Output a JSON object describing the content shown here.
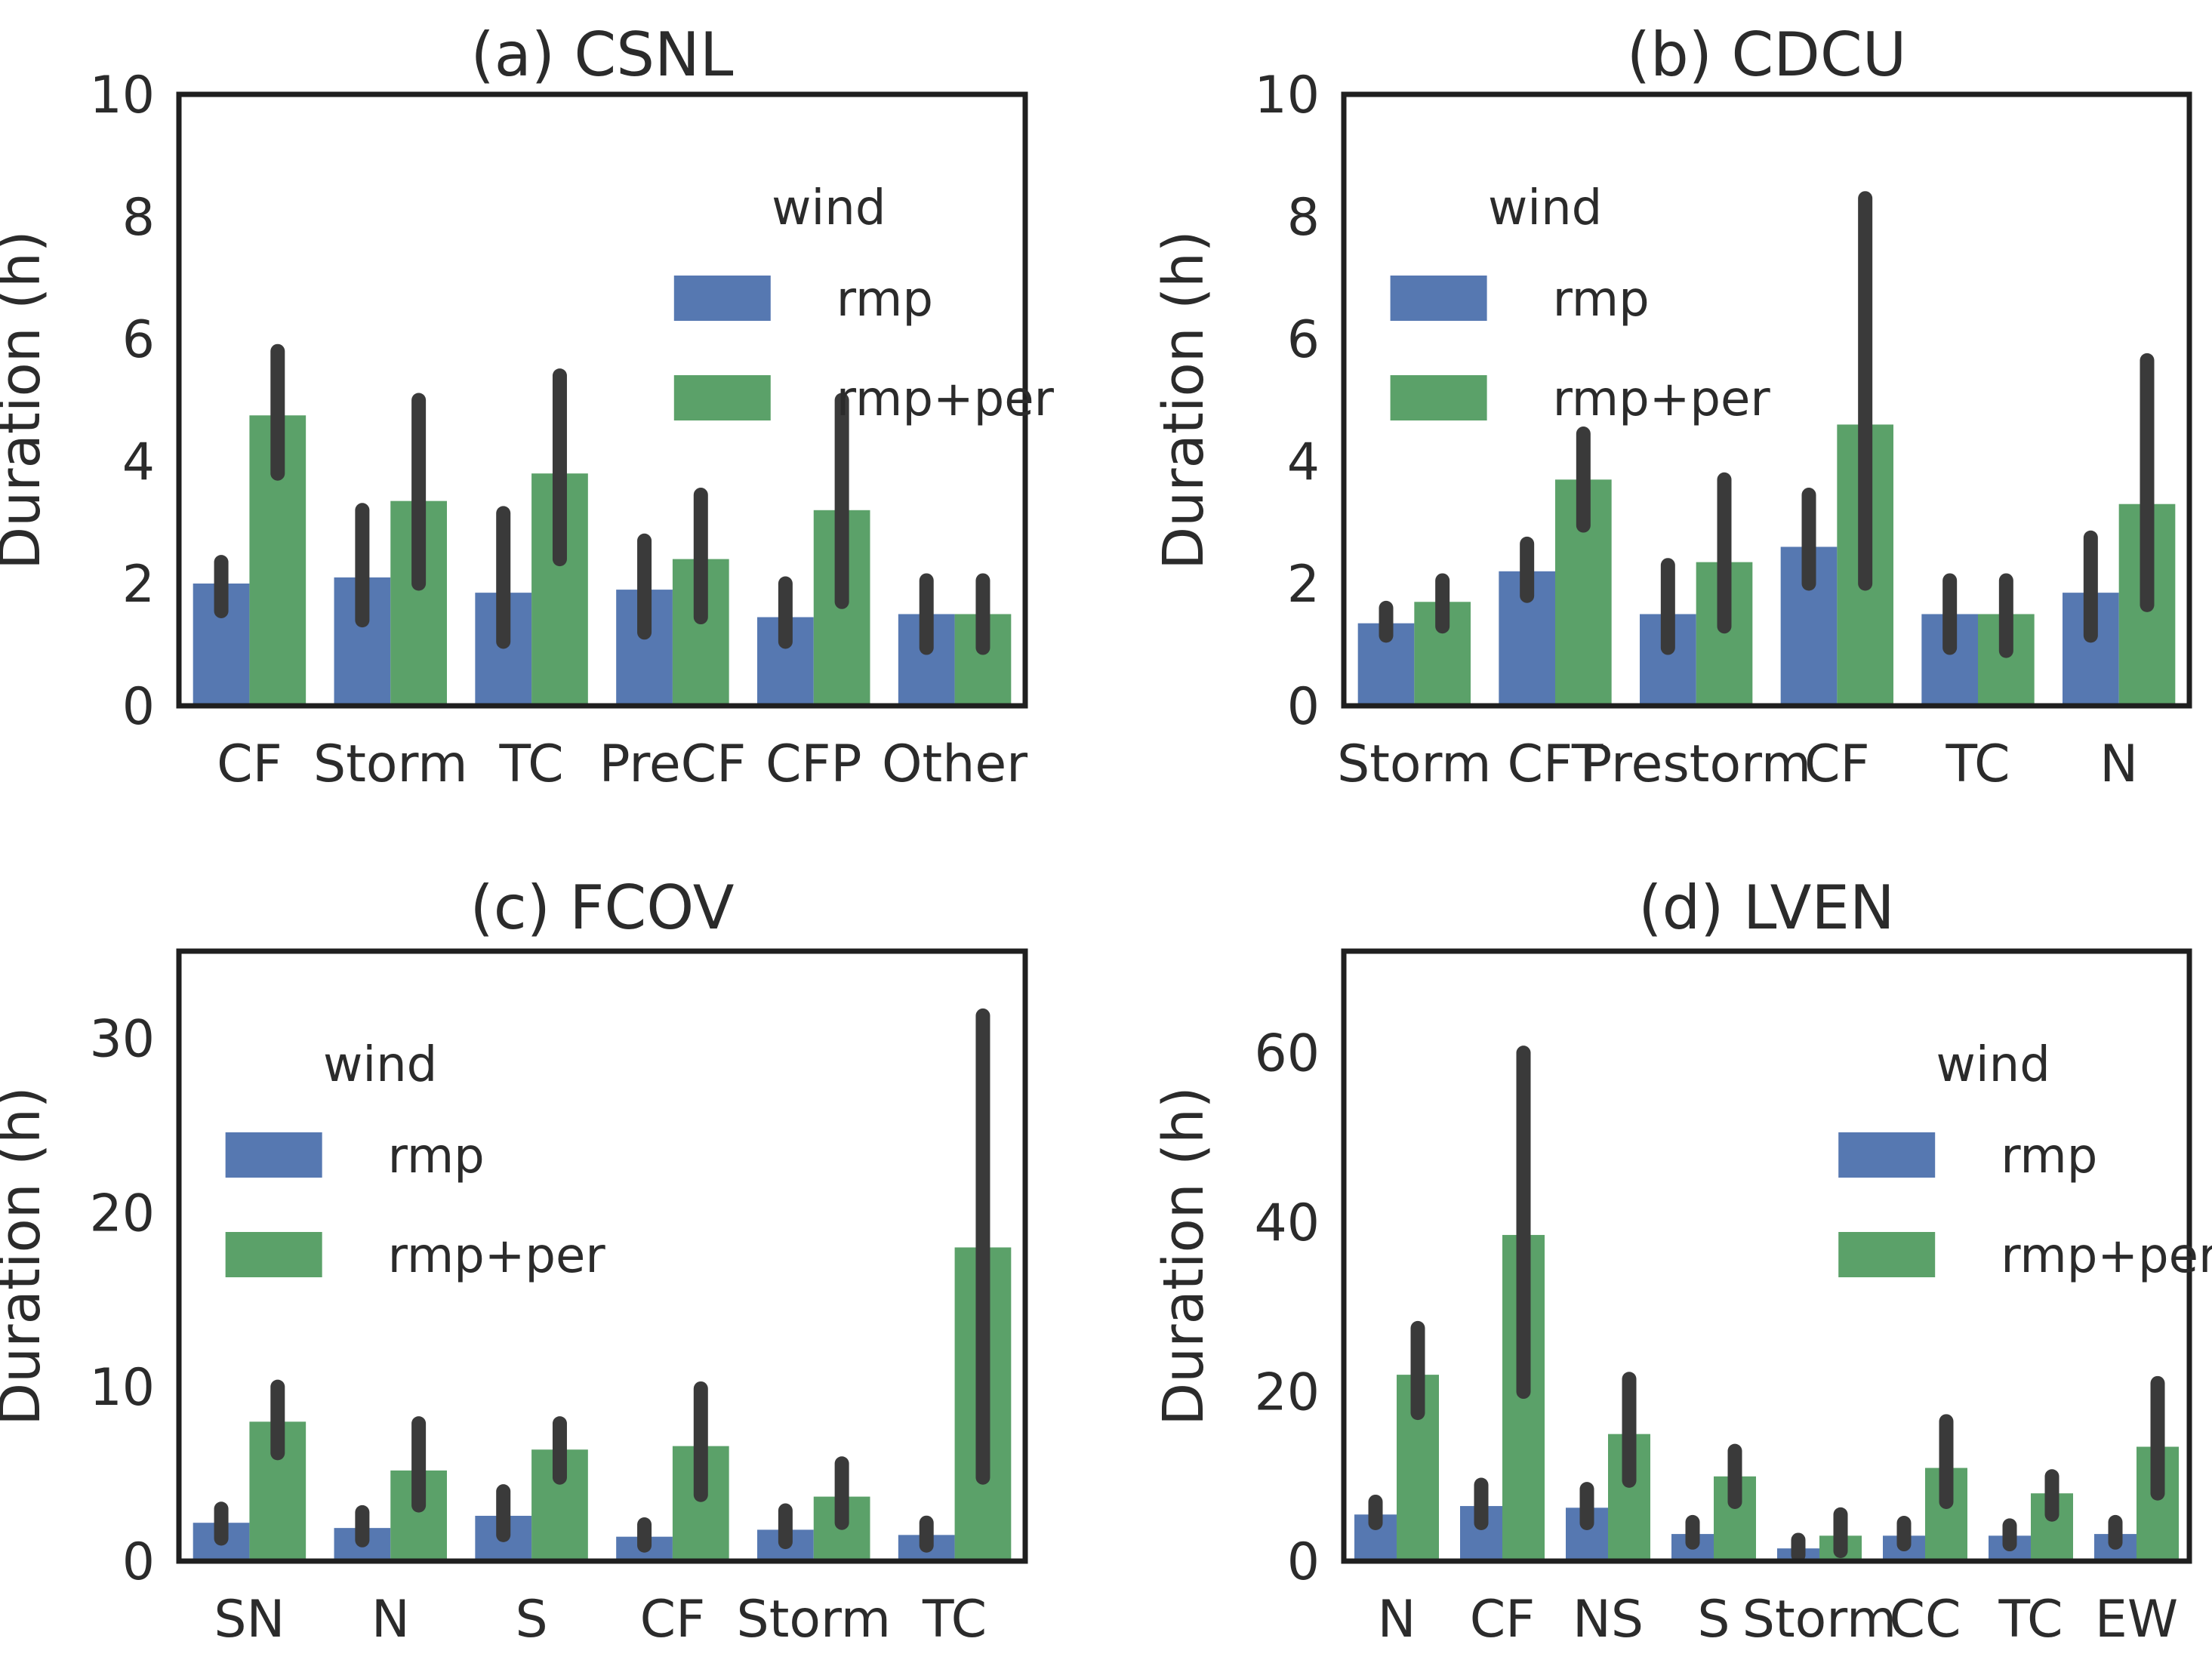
{
  "figure": {
    "background": "#ffffff",
    "text_color": "#2b2b2b",
    "spine_color": "#1f1f1f",
    "errorbar_color": "#3a3a3a",
    "bar_colors": {
      "rmp": "#5678b1",
      "rmp_per": "#5ba169"
    }
  },
  "legend": {
    "title": "wind",
    "entries": [
      {
        "label": "rmp",
        "color_key": "rmp"
      },
      {
        "label": "rmp+per",
        "color_key": "rmp_per"
      }
    ]
  },
  "chart_data": [
    {
      "type": "bar",
      "panel": "a",
      "title": "(a) CSNL",
      "ylabel": "Duration (h)",
      "ylim": [
        0,
        10
      ],
      "yticks": [
        0,
        2,
        4,
        6,
        8,
        10
      ],
      "grid": false,
      "legend_pos": "upper-right",
      "categories": [
        "CF",
        "Storm",
        "TC",
        "PreCF",
        "CFP",
        "Other"
      ],
      "series": [
        {
          "name": "rmp",
          "values": [
            2.0,
            2.1,
            1.85,
            1.9,
            1.45,
            1.5
          ],
          "err_lo": [
            1.55,
            1.4,
            1.05,
            1.2,
            1.05,
            0.95
          ],
          "err_hi": [
            2.35,
            3.2,
            3.15,
            2.7,
            2.0,
            2.05
          ]
        },
        {
          "name": "rmp+per",
          "values": [
            4.75,
            3.35,
            3.8,
            2.4,
            3.2,
            1.5
          ],
          "err_lo": [
            3.8,
            2.0,
            2.4,
            1.45,
            1.7,
            0.95
          ],
          "err_hi": [
            5.8,
            5.0,
            5.4,
            3.45,
            5.0,
            2.05
          ]
        }
      ]
    },
    {
      "type": "bar",
      "panel": "b",
      "title": "(b) CDCU",
      "ylabel": "Duration (h)",
      "ylim": [
        0,
        10
      ],
      "yticks": [
        0,
        2,
        4,
        6,
        8,
        10
      ],
      "grid": false,
      "legend_pos": "upper-left",
      "categories": [
        "Storm",
        "CFT",
        "Prestorm",
        "CF",
        "TC",
        "N"
      ],
      "series": [
        {
          "name": "rmp",
          "values": [
            1.35,
            2.2,
            1.5,
            2.6,
            1.5,
            1.85
          ],
          "err_lo": [
            1.15,
            1.8,
            0.95,
            2.0,
            0.95,
            1.15
          ],
          "err_hi": [
            1.6,
            2.65,
            2.3,
            3.45,
            2.05,
            2.75
          ]
        },
        {
          "name": "rmp+per",
          "values": [
            1.7,
            3.7,
            2.35,
            4.6,
            1.5,
            3.3
          ],
          "err_lo": [
            1.3,
            2.95,
            1.3,
            2.0,
            0.9,
            1.65
          ],
          "err_hi": [
            2.05,
            4.45,
            3.7,
            8.3,
            2.05,
            5.65
          ]
        }
      ]
    },
    {
      "type": "bar",
      "panel": "c",
      "title": "(c) FCOV",
      "ylabel": "Duration (h)",
      "ylim": [
        0,
        35
      ],
      "yticks": [
        0,
        10,
        20,
        30
      ],
      "grid": false,
      "legend_pos": "upper-left",
      "categories": [
        "SN",
        "N",
        "S",
        "CF",
        "Storm",
        "TC"
      ],
      "series": [
        {
          "name": "rmp",
          "values": [
            2.2,
            1.9,
            2.6,
            1.4,
            1.8,
            1.5
          ],
          "err_lo": [
            1.3,
            1.2,
            1.5,
            0.9,
            1.1,
            0.9
          ],
          "err_hi": [
            3.0,
            2.8,
            4.0,
            2.1,
            2.9,
            2.2
          ]
        },
        {
          "name": "rmp+per",
          "values": [
            8.0,
            5.2,
            6.4,
            6.6,
            3.7,
            18.0
          ],
          "err_lo": [
            6.2,
            3.2,
            4.8,
            3.8,
            2.2,
            4.8
          ],
          "err_hi": [
            10.0,
            7.9,
            7.9,
            9.9,
            5.6,
            31.3
          ]
        }
      ]
    },
    {
      "type": "bar",
      "panel": "d",
      "title": "(d) LVEN",
      "ylabel": "Duration (h)",
      "ylim": [
        0,
        72
      ],
      "yticks": [
        0,
        20,
        40,
        60
      ],
      "grid": false,
      "legend_pos": "upper-right",
      "categories": [
        "N",
        "CF",
        "NS",
        "S",
        "Storm",
        "CC",
        "TC",
        "EW"
      ],
      "series": [
        {
          "name": "rmp",
          "values": [
            5.5,
            6.5,
            6.3,
            3.2,
            1.5,
            3.0,
            3.0,
            3.2
          ],
          "err_lo": [
            4.5,
            4.5,
            4.5,
            2.2,
            0.7,
            2.0,
            2.0,
            2.2
          ],
          "err_hi": [
            7.0,
            9.0,
            8.5,
            4.6,
            2.5,
            4.5,
            4.2,
            4.6
          ]
        },
        {
          "name": "rmp+per",
          "values": [
            22.0,
            38.5,
            15.0,
            10.0,
            3.0,
            11.0,
            8.0,
            13.5
          ],
          "err_lo": [
            17.5,
            20.0,
            9.5,
            7.0,
            1.2,
            7.0,
            5.5,
            8.0
          ],
          "err_hi": [
            27.5,
            60.0,
            21.5,
            13.0,
            5.5,
            16.5,
            10.0,
            21.0
          ]
        }
      ]
    }
  ]
}
